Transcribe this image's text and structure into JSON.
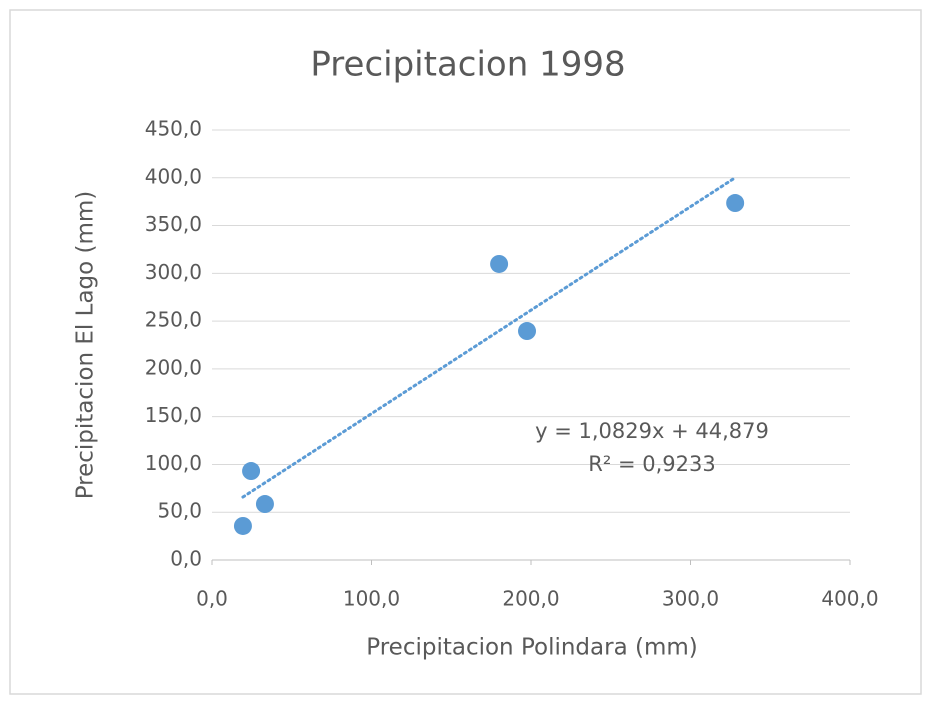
{
  "chart_data": {
    "type": "scatter",
    "title": "Precipitacion 1998",
    "xlabel": "Precipitacion Polindara (mm)",
    "ylabel": "Precipitacion El Lago (mm)",
    "x": [
      19.4,
      24.5,
      33.2,
      180.0,
      197.5,
      328.0
    ],
    "values": [
      35.6,
      93.1,
      58.6,
      309.8,
      239.6,
      373.6
    ],
    "color": "#5b9bd5",
    "xlim": [
      0,
      400
    ],
    "xticks": [
      {
        "value": 0,
        "label": "0,0"
      },
      {
        "value": 100,
        "label": "100,0"
      },
      {
        "value": 200,
        "label": "200,0"
      },
      {
        "value": 300,
        "label": "300,0"
      },
      {
        "value": 400,
        "label": "400,0"
      }
    ],
    "ylim": [
      0,
      450
    ],
    "yticks": [
      {
        "value": 0,
        "label": "0,0"
      },
      {
        "value": 50,
        "label": "50,0"
      },
      {
        "value": 100,
        "label": "100,0"
      },
      {
        "value": 150,
        "label": "150,0"
      },
      {
        "value": 200,
        "label": "200,0"
      },
      {
        "value": 250,
        "label": "250,0"
      },
      {
        "value": 300,
        "label": "300,0"
      },
      {
        "value": 350,
        "label": "350,0"
      },
      {
        "value": 400,
        "label": "400,0"
      },
      {
        "value": 450,
        "label": "450,0"
      }
    ],
    "grid": true,
    "trendline": {
      "slope": 1.0829,
      "intercept": 44.879,
      "equation": "y = 1,0829x + 44,879",
      "r2": "R² = 0,9233"
    }
  }
}
